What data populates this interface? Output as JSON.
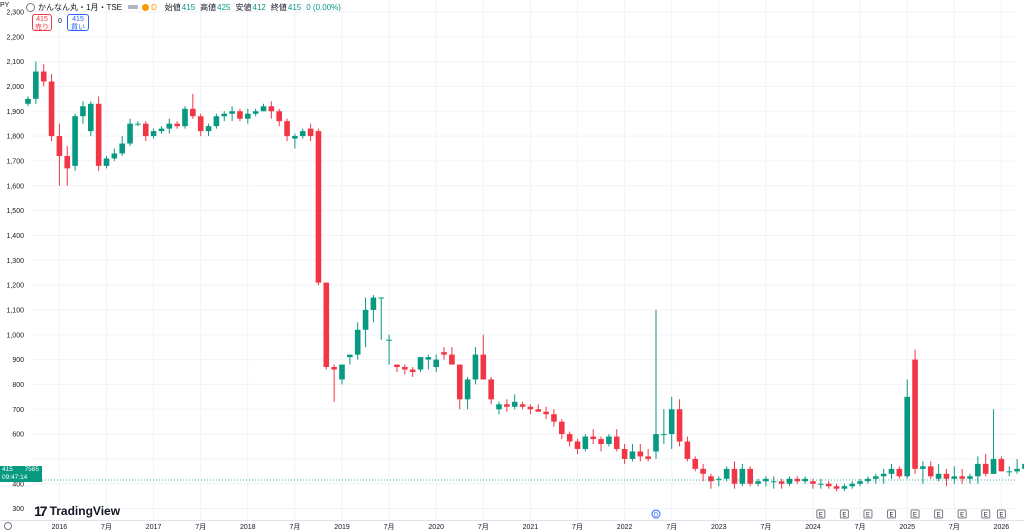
{
  "legend": {
    "axis_unit": "PY",
    "title": "かんなん丸・1月・TSE",
    "delay_label": "D",
    "ohlc": [
      {
        "k": "始値",
        "v": "415"
      },
      {
        "k": "高値",
        "v": "425"
      },
      {
        "k": "安値",
        "v": "412"
      },
      {
        "k": "終値",
        "v": "415"
      }
    ],
    "change": "0 (0.00%)"
  },
  "order_buttons": {
    "sell_price": "415",
    "sell_label": "売り",
    "spread": "0",
    "buy_price": "415",
    "buy_label": "買い"
  },
  "price_tag": {
    "price": "415",
    "volume": "7585",
    "countdown": "09:47:14"
  },
  "brand": {
    "name": "TradingView"
  },
  "colors": {
    "up": "#089981",
    "down": "#f23645",
    "grid": "#f0f3fa",
    "axis_text": "#131722"
  },
  "chart_data": {
    "type": "candlestick",
    "interval": "1月",
    "ylim": [
      250,
      2350
    ],
    "y_ticks": [
      300,
      400,
      500,
      600,
      700,
      800,
      900,
      1000,
      1100,
      1200,
      1300,
      1400,
      1500,
      1600,
      1700,
      1800,
      1900,
      2000,
      2100,
      2200,
      2300
    ],
    "y_tick_labels": [
      "300",
      "400",
      "",
      "600",
      "700",
      "800",
      "900",
      "1,000",
      "1,100",
      "1,200",
      "1,300",
      "1,400",
      "1,500",
      "1,600",
      "1,700",
      "1,800",
      "1,900",
      "2,000",
      "2,100",
      "2,200",
      "2,300"
    ],
    "x_labels": [
      {
        "m": 4,
        "label": "2016"
      },
      {
        "m": 10,
        "label": "7月"
      },
      {
        "m": 16,
        "label": "2017"
      },
      {
        "m": 22,
        "label": "7月"
      },
      {
        "m": 28,
        "label": "2018"
      },
      {
        "m": 34,
        "label": "7月"
      },
      {
        "m": 40,
        "label": "2019"
      },
      {
        "m": 46,
        "label": "7月"
      },
      {
        "m": 52,
        "label": "2020"
      },
      {
        "m": 58,
        "label": "7月"
      },
      {
        "m": 64,
        "label": "2021"
      },
      {
        "m": 70,
        "label": "7月"
      },
      {
        "m": 76,
        "label": "2022"
      },
      {
        "m": 82,
        "label": "7月"
      },
      {
        "m": 88,
        "label": "2023"
      },
      {
        "m": 94,
        "label": "7月"
      },
      {
        "m": 100,
        "label": "2024"
      },
      {
        "m": 106,
        "label": "7月"
      },
      {
        "m": 112,
        "label": "2025"
      },
      {
        "m": 118,
        "label": "7月"
      },
      {
        "m": 124,
        "label": "2026"
      }
    ],
    "markers": [
      {
        "m": 80,
        "type": "D"
      },
      {
        "m": 101,
        "type": "E"
      },
      {
        "m": 104,
        "type": "E"
      },
      {
        "m": 107,
        "type": "E"
      },
      {
        "m": 110,
        "type": "E"
      },
      {
        "m": 113,
        "type": "E"
      },
      {
        "m": 116,
        "type": "E"
      },
      {
        "m": 119,
        "type": "E"
      },
      {
        "m": 122,
        "type": "E"
      },
      {
        "m": 124,
        "type": "E"
      }
    ],
    "last_price": 415,
    "candles": [
      [
        1930,
        1960,
        1920,
        1950
      ],
      [
        1950,
        2100,
        1930,
        2060
      ],
      [
        2060,
        2090,
        2000,
        2020
      ],
      [
        2020,
        2050,
        1780,
        1800
      ],
      [
        1800,
        1850,
        1600,
        1720
      ],
      [
        1720,
        1760,
        1600,
        1670
      ],
      [
        1680,
        1890,
        1660,
        1880
      ],
      [
        1880,
        1940,
        1850,
        1920
      ],
      [
        1820,
        1940,
        1800,
        1930
      ],
      [
        1930,
        1960,
        1660,
        1680
      ],
      [
        1680,
        1720,
        1670,
        1710
      ],
      [
        1710,
        1750,
        1700,
        1730
      ],
      [
        1730,
        1800,
        1720,
        1770
      ],
      [
        1770,
        1870,
        1760,
        1850
      ],
      [
        1850,
        1860,
        1840,
        1850
      ],
      [
        1850,
        1860,
        1780,
        1800
      ],
      [
        1800,
        1830,
        1790,
        1820
      ],
      [
        1820,
        1840,
        1810,
        1830
      ],
      [
        1830,
        1870,
        1810,
        1850
      ],
      [
        1850,
        1860,
        1830,
        1840
      ],
      [
        1840,
        1920,
        1830,
        1910
      ],
      [
        1910,
        1970,
        1870,
        1880
      ],
      [
        1880,
        1890,
        1800,
        1820
      ],
      [
        1820,
        1850,
        1800,
        1840
      ],
      [
        1840,
        1890,
        1830,
        1880
      ],
      [
        1880,
        1900,
        1860,
        1890
      ],
      [
        1890,
        1920,
        1860,
        1900
      ],
      [
        1900,
        1910,
        1860,
        1870
      ],
      [
        1870,
        1910,
        1850,
        1890
      ],
      [
        1890,
        1910,
        1880,
        1900
      ],
      [
        1900,
        1930,
        1900,
        1920
      ],
      [
        1920,
        1940,
        1870,
        1900
      ],
      [
        1900,
        1910,
        1840,
        1860
      ],
      [
        1860,
        1870,
        1780,
        1800
      ],
      [
        1790,
        1810,
        1750,
        1800
      ],
      [
        1800,
        1830,
        1790,
        1820
      ],
      [
        1830,
        1850,
        1780,
        1800
      ],
      [
        1820,
        1830,
        1200,
        1210
      ],
      [
        1210,
        1210,
        860,
        870
      ],
      [
        870,
        880,
        730,
        860
      ],
      [
        820,
        860,
        800,
        880
      ],
      [
        910,
        920,
        880,
        920
      ],
      [
        920,
        1050,
        900,
        1020
      ],
      [
        1020,
        1150,
        950,
        1100
      ],
      [
        1100,
        1160,
        1050,
        1150
      ],
      [
        1150,
        1150,
        980,
        1150
      ],
      [
        980,
        1000,
        880,
        980
      ],
      [
        880,
        880,
        850,
        870
      ],
      [
        870,
        880,
        840,
        860
      ],
      [
        860,
        870,
        830,
        850
      ],
      [
        860,
        910,
        850,
        910
      ],
      [
        900,
        920,
        860,
        910
      ],
      [
        870,
        920,
        850,
        900
      ],
      [
        930,
        950,
        900,
        920
      ],
      [
        920,
        950,
        880,
        880
      ],
      [
        880,
        880,
        700,
        740
      ],
      [
        740,
        830,
        700,
        820
      ],
      [
        820,
        950,
        800,
        920
      ],
      [
        920,
        1000,
        820,
        820
      ],
      [
        820,
        830,
        720,
        740
      ],
      [
        700,
        730,
        680,
        720
      ],
      [
        720,
        740,
        690,
        710
      ],
      [
        710,
        760,
        700,
        730
      ],
      [
        720,
        730,
        700,
        710
      ],
      [
        710,
        720,
        680,
        700
      ],
      [
        700,
        720,
        690,
        690
      ],
      [
        690,
        710,
        660,
        680
      ],
      [
        680,
        700,
        630,
        650
      ],
      [
        650,
        660,
        580,
        600
      ],
      [
        600,
        610,
        550,
        570
      ],
      [
        570,
        580,
        520,
        540
      ],
      [
        540,
        600,
        530,
        590
      ],
      [
        590,
        620,
        560,
        580
      ],
      [
        580,
        590,
        530,
        560
      ],
      [
        560,
        600,
        550,
        590
      ],
      [
        590,
        620,
        530,
        540
      ],
      [
        540,
        560,
        480,
        500
      ],
      [
        500,
        560,
        490,
        530
      ],
      [
        530,
        560,
        490,
        510
      ],
      [
        510,
        540,
        490,
        500
      ],
      [
        530,
        1100,
        500,
        600
      ],
      [
        600,
        700,
        560,
        600
      ],
      [
        600,
        750,
        540,
        700
      ],
      [
        700,
        740,
        550,
        570
      ],
      [
        570,
        590,
        490,
        500
      ],
      [
        500,
        510,
        450,
        460
      ],
      [
        460,
        480,
        410,
        440
      ],
      [
        430,
        440,
        380,
        410
      ],
      [
        420,
        430,
        390,
        420
      ],
      [
        420,
        470,
        410,
        460
      ],
      [
        460,
        490,
        380,
        400
      ],
      [
        400,
        480,
        390,
        460
      ],
      [
        460,
        470,
        390,
        400
      ],
      [
        400,
        420,
        390,
        410
      ],
      [
        410,
        430,
        390,
        420
      ],
      [
        410,
        430,
        380,
        410
      ],
      [
        410,
        420,
        380,
        400
      ],
      [
        400,
        430,
        390,
        420
      ],
      [
        420,
        430,
        400,
        410
      ],
      [
        410,
        430,
        400,
        420
      ],
      [
        410,
        420,
        380,
        400
      ],
      [
        400,
        420,
        380,
        400
      ],
      [
        400,
        410,
        380,
        390
      ],
      [
        390,
        400,
        370,
        380
      ],
      [
        380,
        400,
        370,
        390
      ],
      [
        390,
        410,
        380,
        400
      ],
      [
        400,
        420,
        390,
        410
      ],
      [
        410,
        430,
        400,
        420
      ],
      [
        420,
        440,
        400,
        430
      ],
      [
        430,
        460,
        400,
        440
      ],
      [
        440,
        480,
        420,
        460
      ],
      [
        460,
        470,
        420,
        430
      ],
      [
        430,
        820,
        420,
        750
      ],
      [
        900,
        940,
        440,
        460
      ],
      [
        460,
        490,
        400,
        470
      ],
      [
        470,
        490,
        420,
        430
      ],
      [
        420,
        480,
        410,
        440
      ],
      [
        440,
        460,
        390,
        420
      ],
      [
        420,
        470,
        400,
        430
      ],
      [
        430,
        460,
        400,
        420
      ],
      [
        420,
        440,
        400,
        430
      ],
      [
        430,
        510,
        400,
        480
      ],
      [
        480,
        520,
        430,
        440
      ],
      [
        440,
        700,
        440,
        500
      ],
      [
        500,
        510,
        450,
        450
      ],
      [
        450,
        470,
        430,
        450
      ],
      [
        450,
        500,
        440,
        460
      ],
      [
        460,
        510,
        450,
        480
      ],
      [
        480,
        550,
        450,
        520
      ],
      [
        520,
        560,
        500,
        530
      ],
      [
        530,
        550,
        500,
        520
      ],
      [
        520,
        530,
        490,
        500
      ],
      [
        500,
        510,
        470,
        480
      ],
      [
        480,
        490,
        440,
        450
      ],
      [
        450,
        470,
        420,
        440
      ],
      [
        440,
        480,
        420,
        450
      ],
      [
        450,
        470,
        430,
        440
      ],
      [
        440,
        460,
        370,
        420
      ],
      [
        420,
        460,
        400,
        440
      ],
      [
        440,
        470,
        410,
        450
      ],
      [
        450,
        490,
        430,
        440
      ],
      [
        440,
        460,
        420,
        430
      ],
      [
        430,
        450,
        410,
        430
      ],
      [
        430,
        460,
        420,
        440
      ],
      [
        440,
        470,
        420,
        440
      ],
      [
        440,
        510,
        420,
        450
      ],
      [
        450,
        460,
        410,
        430
      ],
      [
        430,
        460,
        410,
        440
      ],
      [
        440,
        450,
        410,
        420
      ],
      [
        420,
        440,
        405,
        430
      ],
      [
        430,
        440,
        410,
        420
      ],
      [
        420,
        445,
        410,
        430
      ],
      [
        415,
        425,
        412,
        415
      ]
    ]
  }
}
